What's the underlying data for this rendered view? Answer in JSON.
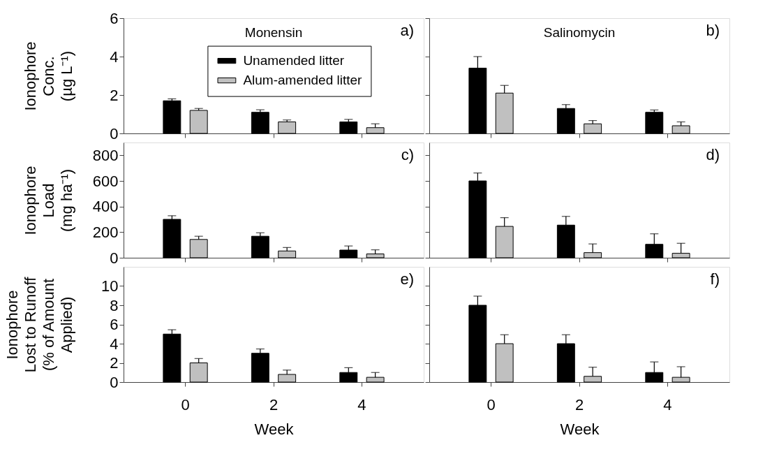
{
  "chart_data": [
    {
      "type": "bar",
      "title": "Monensin",
      "categories": [
        "0",
        "2",
        "4"
      ],
      "ylabel": "Ionophore\nConc.\n(µg L⁻¹)",
      "ylim": [
        0,
        6
      ],
      "yticks": [
        0,
        2,
        4,
        6
      ],
      "tick_labels": "y",
      "grid": false,
      "legend": "top right",
      "annotations": [
        "a)"
      ],
      "series": [
        {
          "name": "Unamended litter",
          "color": "#000000",
          "values": [
            1.7,
            1.1,
            0.6
          ],
          "errors": [
            0.1,
            0.13,
            0.13
          ]
        },
        {
          "name": "Alum-amended litter",
          "color": "#c0c0c0",
          "values": [
            1.2,
            0.6,
            0.3
          ],
          "errors": [
            0.1,
            0.1,
            0.2
          ]
        }
      ]
    },
    {
      "type": "bar",
      "title": "Salinomycin",
      "categories": [
        "0",
        "2",
        "4"
      ],
      "ylim": [
        0,
        6
      ],
      "yticks": [
        0,
        2,
        4,
        6
      ],
      "tick_labels": false,
      "grid": false,
      "legend": false,
      "annotations": [
        "b)"
      ],
      "series": [
        {
          "color": "#000000",
          "values": [
            3.4,
            1.3,
            1.1
          ],
          "errors": [
            0.6,
            0.2,
            0.12
          ]
        },
        {
          "color": "#c0c0c0",
          "values": [
            2.1,
            0.5,
            0.4
          ],
          "errors": [
            0.4,
            0.17,
            0.2
          ]
        }
      ]
    },
    {
      "type": "bar",
      "categories": [
        "0",
        "2",
        "4"
      ],
      "ylabel": "Ionophore\nLoad\n(mg ha⁻¹)",
      "ylim": [
        0,
        900
      ],
      "yticks": [
        0,
        200,
        400,
        600,
        800
      ],
      "tick_labels": "y",
      "grid": false,
      "legend": false,
      "annotations": [
        "c)"
      ],
      "series": [
        {
          "color": "#000000",
          "values": [
            300,
            168,
            60
          ],
          "errors": [
            28,
            27,
            32
          ]
        },
        {
          "color": "#c0c0c0",
          "values": [
            143,
            53,
            30
          ],
          "errors": [
            25,
            27,
            32
          ]
        }
      ]
    },
    {
      "type": "bar",
      "categories": [
        "0",
        "2",
        "4"
      ],
      "ylim": [
        0,
        900
      ],
      "yticks": [
        0,
        200,
        400,
        600,
        800
      ],
      "tick_labels": false,
      "grid": false,
      "legend": false,
      "annotations": [
        "d)"
      ],
      "series": [
        {
          "color": "#000000",
          "values": [
            600,
            255,
            105
          ],
          "errors": [
            62,
            68,
            82
          ]
        },
        {
          "color": "#c0c0c0",
          "values": [
            245,
            40,
            35
          ],
          "errors": [
            68,
            68,
            78
          ]
        }
      ]
    },
    {
      "type": "bar",
      "categories": [
        "0",
        "2",
        "4"
      ],
      "xlabel": "Week",
      "ylabel": "Ionophore\nLost to Runoff\n(% of Amount\nApplied)",
      "ylim": [
        0,
        12
      ],
      "yticks": [
        0,
        2,
        4,
        6,
        8,
        10
      ],
      "grid": false,
      "legend": false,
      "annotations": [
        "e)"
      ],
      "series": [
        {
          "color": "#000000",
          "values": [
            5.0,
            3.0,
            1.0
          ],
          "errors": [
            0.45,
            0.45,
            0.5
          ]
        },
        {
          "color": "#c0c0c0",
          "values": [
            2.0,
            0.8,
            0.5
          ],
          "errors": [
            0.45,
            0.45,
            0.5
          ]
        }
      ]
    },
    {
      "type": "bar",
      "categories": [
        "0",
        "2",
        "4"
      ],
      "xlabel": "Week",
      "ylim": [
        0,
        12
      ],
      "yticks": [
        0,
        2,
        4,
        6,
        8,
        10
      ],
      "tick_labels": "x",
      "grid": false,
      "legend": false,
      "annotations": [
        "f)"
      ],
      "series": [
        {
          "color": "#000000",
          "values": [
            8.0,
            4.0,
            1.0
          ],
          "errors": [
            0.95,
            0.93,
            1.1
          ]
        },
        {
          "color": "#c0c0c0",
          "values": [
            4.0,
            0.6,
            0.5
          ],
          "errors": [
            0.93,
            0.95,
            1.1
          ]
        }
      ]
    }
  ]
}
